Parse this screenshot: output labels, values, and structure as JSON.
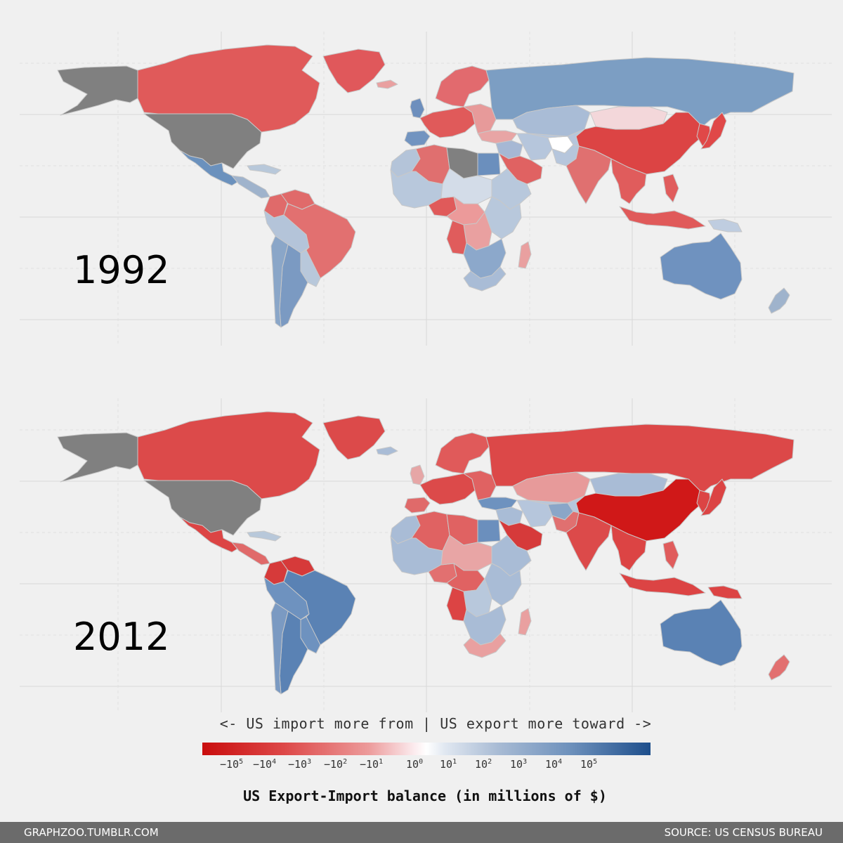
{
  "maps": [
    {
      "year": "1992",
      "colors": {
        "usa": "#808080",
        "alaska": "#808080",
        "canada": "#e05a5a",
        "greenland": "#e0585b",
        "mexico": "#6b91bd",
        "central_america": "#9fb3cc",
        "caribbean": "#b8c8da",
        "colombia": "#e06a6a",
        "venezuela": "#e06a6a",
        "brazil": "#e27070",
        "peru_bolivia": "#b4c4d9",
        "argentina": "#7b9ac2",
        "chile": "#8aa6c8",
        "south_cone": "#b8c8db",
        "scandinavia": "#e26a6e",
        "uk_ireland": "#6d8fbd",
        "western_europe": "#e05a5a",
        "eastern_europe": "#e79a9a",
        "iberia": "#7294c0",
        "russia": "#7c9ec3",
        "kazakhstan": "#a9bcd6",
        "mongolia": "#f3d7da",
        "china": "#dc4444",
        "japan": "#e04848",
        "korea": "#e04848",
        "turkey": "#e8a5a5",
        "middle_east": "#a6b8d4",
        "saudi": "#e06262",
        "iran": "#b6c6dc",
        "afghanistan": "#ffffff",
        "central_asia": "#b6c6dc",
        "india": "#e07070",
        "pakistan": "#b6c6dc",
        "se_asia": "#e05c5c",
        "indonesia": "#e05a5a",
        "philippines": "#e05c5c",
        "png": "#bfcde0",
        "australia": "#6f92bf",
        "new_zealand": "#9fb3cc",
        "morocco": "#b4c4d9",
        "algeria": "#e06f6f",
        "libya": "#808080",
        "egypt": "#6b8fbd",
        "west_africa": "#b8c8dc",
        "sahel": "#d3dce8",
        "nigeria": "#e05a5a",
        "central_africa": "#ec9a9a",
        "east_africa": "#b8c8dc",
        "horn": "#b8c8dc",
        "congo": "#e9a0a0",
        "angola": "#e05c5c",
        "southern_africa": "#8ca8cb",
        "south_africa": "#a9bcd6",
        "madagascar": "#e9a0a0",
        "iceland": "#e9a0a0"
      }
    },
    {
      "year": "2012",
      "colors": {
        "usa": "#808080",
        "alaska": "#808080",
        "canada": "#dc4a4a",
        "greenland": "#dc4a4a",
        "mexico": "#dc4444",
        "central_america": "#e06a6a",
        "caribbean": "#b8c8da",
        "colombia": "#d63a3a",
        "venezuela": "#d63a3a",
        "brazil": "#5a82b4",
        "peru_bolivia": "#6e92bf",
        "argentina": "#5a82b4",
        "chile": "#7b9ac2",
        "south_cone": "#6e92bf",
        "scandinavia": "#e05a5a",
        "uk_ireland": "#e6a6a6",
        "western_europe": "#dc4a4a",
        "eastern_europe": "#e06262",
        "iberia": "#e06a6a",
        "russia": "#dc4848",
        "kazakhstan": "#e79a9a",
        "mongolia": "#a9bcd6",
        "china": "#d01818",
        "japan": "#dc4444",
        "korea": "#dc4444",
        "turkey": "#6e92bf",
        "middle_east": "#a9bcd6",
        "saudi": "#d63a3a",
        "iran": "#b6c6dc",
        "afghanistan": "#8aa6c8",
        "central_asia": "#b6c6dc",
        "india": "#dc4a4a",
        "pakistan": "#e07070",
        "se_asia": "#dc4444",
        "indonesia": "#dc4444",
        "philippines": "#e05c5c",
        "png": "#dc4444",
        "australia": "#5a82b4",
        "new_zealand": "#e27070",
        "morocco": "#a9bcd6",
        "algeria": "#e06262",
        "libya": "#e06262",
        "egypt": "#6b8fbd",
        "west_africa": "#a9bcd6",
        "sahel": "#e8a5a5",
        "nigeria": "#e27070",
        "central_africa": "#e06262",
        "east_africa": "#a9bcd6",
        "horn": "#a9bcd6",
        "congo": "#b8c8dc",
        "angola": "#dc4444",
        "southern_africa": "#a9bcd6",
        "south_africa": "#e9a0a0",
        "madagascar": "#e9a0a0",
        "iceland": "#a9bcd6"
      }
    }
  ],
  "legend": {
    "caption": "<- US import more from | US export more toward ->",
    "title": "US Export-Import balance (in millions of $)",
    "ticks": [
      {
        "base": "−10",
        "exp": "5"
      },
      {
        "base": "−10",
        "exp": "4"
      },
      {
        "base": "−10",
        "exp": "3"
      },
      {
        "base": "−10",
        "exp": "2"
      },
      {
        "base": "−10",
        "exp": "1"
      },
      {
        "base": "10",
        "exp": "0"
      },
      {
        "base": "10",
        "exp": "1"
      },
      {
        "base": "10",
        "exp": "2"
      },
      {
        "base": "10",
        "exp": "3"
      },
      {
        "base": "10",
        "exp": "4"
      },
      {
        "base": "10",
        "exp": "5"
      }
    ],
    "colors": {
      "min": "#c90d0d",
      "mid": "#ffffff",
      "max": "#1e4f8c"
    }
  },
  "footer": {
    "left": "GRAPHZOO.TUMBLR.COM",
    "right": "SOURCE: US CENSUS BUREAU"
  }
}
